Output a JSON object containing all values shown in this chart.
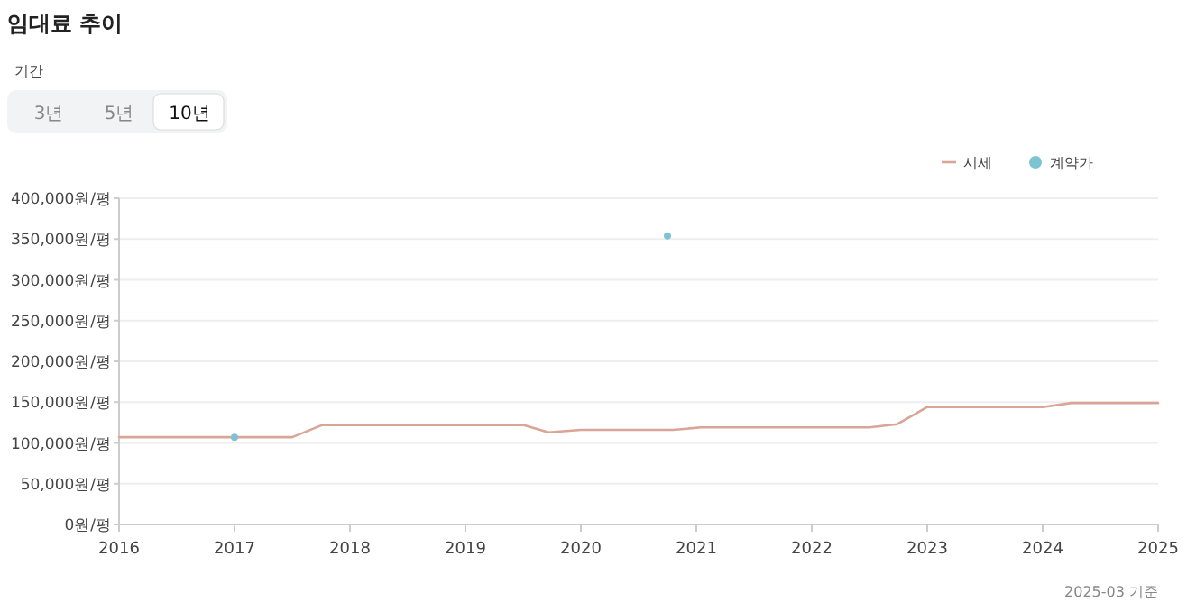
{
  "chart_data": {
    "type": "line",
    "title": "임대료 추이",
    "annotations": [
      "기간",
      "3년",
      "5년",
      "10년",
      "2025-03 기준"
    ],
    "xlim": [
      2016,
      2025
    ],
    "xticks": [
      2016,
      2017,
      2018,
      2019,
      2020,
      2021,
      2022,
      2023,
      2024,
      2025
    ],
    "ylim": [
      0,
      400000
    ],
    "yticks": [
      {
        "value": 0,
        "label": "0원/평"
      },
      {
        "value": 50000,
        "label": "50,000원/평"
      },
      {
        "value": 100000,
        "label": "100,000원/평"
      },
      {
        "value": 150000,
        "label": "150,000원/평"
      },
      {
        "value": 200000,
        "label": "200,000원/평"
      },
      {
        "value": 250000,
        "label": "250,000원/평"
      },
      {
        "value": 300000,
        "label": "300,000원/평"
      },
      {
        "value": 350000,
        "label": "350,000원/평"
      },
      {
        "value": 400000,
        "label": "400,000원/평"
      }
    ],
    "grid": "y",
    "legend": "top right",
    "marker": "none",
    "line_style": "solid",
    "series": [
      {
        "name": "시세",
        "color": "#d9a596",
        "x": [
          2016,
          2017,
          2017.5,
          2017.76,
          2019.5,
          2019.72,
          2020,
          2020.8,
          2021.04,
          2022.5,
          2022.74,
          2023,
          2024,
          2024.25,
          2025
        ],
        "values": [
          107000,
          107000,
          107000,
          122000,
          122000,
          113000,
          116000,
          116000,
          119000,
          119000,
          123000,
          144000,
          144000,
          149000,
          149000
        ]
      },
      {
        "name": "계약가",
        "type": "scatter",
        "marker": "circle",
        "color": "#7ec3d3",
        "x": [
          2017,
          2020.75
        ],
        "values": [
          107000,
          354000
        ]
      }
    ]
  }
}
